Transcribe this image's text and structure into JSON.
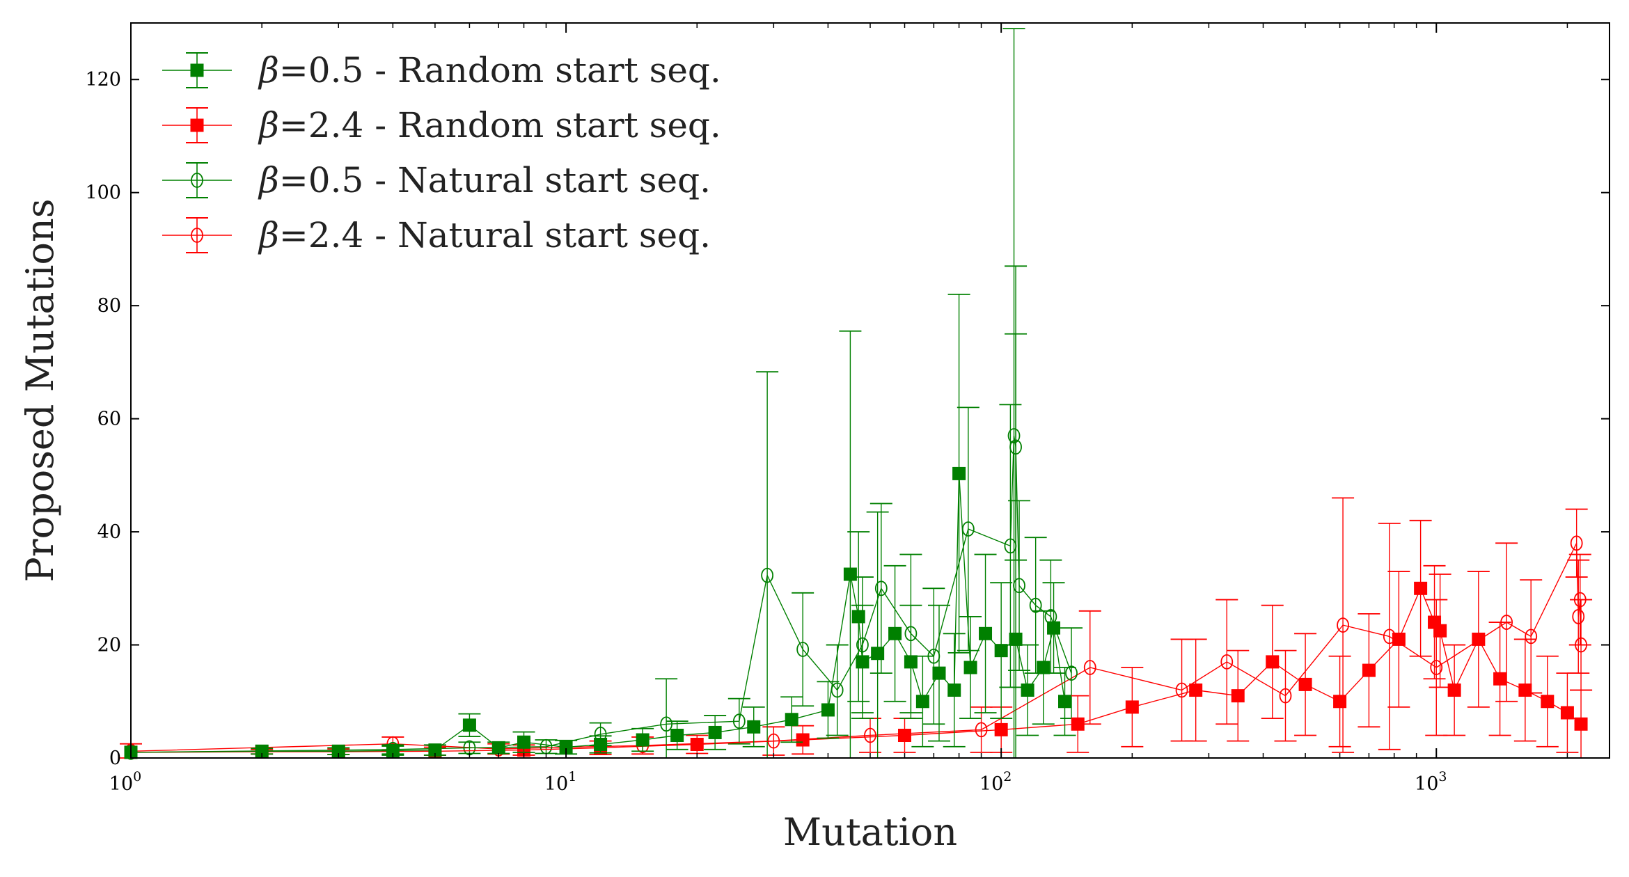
{
  "chart_data": {
    "type": "scatter",
    "title": "",
    "xlabel": "Mutation",
    "ylabel": "Proposed Mutations",
    "xscale": "log",
    "xlim": [
      1,
      2500
    ],
    "ylim": [
      0,
      130
    ],
    "grid": false,
    "legend_position": "top-left",
    "x_ticks": [
      {
        "value": 1,
        "base": "10",
        "exp": "0"
      },
      {
        "value": 10,
        "base": "10",
        "exp": "1"
      },
      {
        "value": 100,
        "base": "10",
        "exp": "2"
      },
      {
        "value": 1000,
        "base": "10",
        "exp": "3"
      }
    ],
    "y_ticks": [
      0,
      20,
      40,
      60,
      80,
      100,
      120
    ],
    "series": [
      {
        "name": "β=0.5 - Random start seq.",
        "name_beta": "β",
        "name_rest": "=0.5 - Random start seq.",
        "color": "#008000",
        "marker": "square",
        "points": [
          {
            "x": 1,
            "y": 1,
            "err": 0
          },
          {
            "x": 2,
            "y": 1.2,
            "err": 0.5
          },
          {
            "x": 3,
            "y": 1.2,
            "err": 0.6
          },
          {
            "x": 4,
            "y": 1.3,
            "err": 0.8
          },
          {
            "x": 5,
            "y": 1.4,
            "err": 0.9
          },
          {
            "x": 6,
            "y": 5.8,
            "err": 2
          },
          {
            "x": 7,
            "y": 1.8,
            "err": 1
          },
          {
            "x": 8,
            "y": 2.8,
            "err": 1.8
          },
          {
            "x": 10,
            "y": 1.9,
            "err": 1.2
          },
          {
            "x": 12,
            "y": 2.4,
            "err": 1.5
          },
          {
            "x": 15,
            "y": 3.2,
            "err": 2
          },
          {
            "x": 18,
            "y": 4,
            "err": 2.5
          },
          {
            "x": 22,
            "y": 4.5,
            "err": 3
          },
          {
            "x": 27,
            "y": 5.5,
            "err": 3.5
          },
          {
            "x": 33,
            "y": 6.8,
            "err": 4
          },
          {
            "x": 40,
            "y": 8.5,
            "err": 5
          },
          {
            "x": 45,
            "y": 32.5,
            "err": 43
          },
          {
            "x": 47,
            "y": 25,
            "err": 15
          },
          {
            "x": 48,
            "y": 17,
            "err": 10
          },
          {
            "x": 52,
            "y": 18.5,
            "err": 25
          },
          {
            "x": 57,
            "y": 22,
            "err": 12
          },
          {
            "x": 62,
            "y": 17,
            "err": 10
          },
          {
            "x": 66,
            "y": 10,
            "err": 8
          },
          {
            "x": 72,
            "y": 15,
            "err": 12
          },
          {
            "x": 78,
            "y": 12,
            "err": 10
          },
          {
            "x": 80,
            "y": 50.3,
            "err": 31.7
          },
          {
            "x": 85,
            "y": 16,
            "err": 9
          },
          {
            "x": 92,
            "y": 22,
            "err": 14
          },
          {
            "x": 100,
            "y": 19,
            "err": 12
          },
          {
            "x": 108,
            "y": 21,
            "err": 66
          },
          {
            "x": 115,
            "y": 12,
            "err": 8
          },
          {
            "x": 125,
            "y": 16,
            "err": 10
          },
          {
            "x": 132,
            "y": 23,
            "err": 8
          },
          {
            "x": 140,
            "y": 10,
            "err": 6
          }
        ]
      },
      {
        "name": "β=2.4 - Random start seq.",
        "name_beta": "β",
        "name_rest": "=2.4 - Random start seq.",
        "color": "#ff0000",
        "marker": "square",
        "points": [
          {
            "x": 1,
            "y": 1,
            "err": 0
          },
          {
            "x": 2,
            "y": 1.1,
            "err": 0.4
          },
          {
            "x": 3,
            "y": 1.1,
            "err": 0.5
          },
          {
            "x": 5,
            "y": 1.2,
            "err": 0.7
          },
          {
            "x": 8,
            "y": 1.4,
            "err": 0.9
          },
          {
            "x": 12,
            "y": 1.8,
            "err": 1.2
          },
          {
            "x": 20,
            "y": 2.4,
            "err": 1.6
          },
          {
            "x": 35,
            "y": 3.2,
            "err": 2.5
          },
          {
            "x": 60,
            "y": 4,
            "err": 3
          },
          {
            "x": 100,
            "y": 5,
            "err": 4
          },
          {
            "x": 150,
            "y": 6,
            "err": 5
          },
          {
            "x": 200,
            "y": 9,
            "err": 7
          },
          {
            "x": 280,
            "y": 12,
            "err": 9
          },
          {
            "x": 350,
            "y": 11,
            "err": 8
          },
          {
            "x": 420,
            "y": 17,
            "err": 10
          },
          {
            "x": 500,
            "y": 13,
            "err": 9
          },
          {
            "x": 600,
            "y": 10,
            "err": 8
          },
          {
            "x": 700,
            "y": 15.5,
            "err": 10
          },
          {
            "x": 820,
            "y": 21,
            "err": 12
          },
          {
            "x": 920,
            "y": 30,
            "err": 12
          },
          {
            "x": 990,
            "y": 24,
            "err": 10
          },
          {
            "x": 1020,
            "y": 22.5,
            "err": 10
          },
          {
            "x": 1100,
            "y": 12,
            "err": 8
          },
          {
            "x": 1250,
            "y": 21,
            "err": 12
          },
          {
            "x": 1400,
            "y": 14,
            "err": 10
          },
          {
            "x": 1600,
            "y": 12,
            "err": 9
          },
          {
            "x": 1800,
            "y": 10,
            "err": 8
          },
          {
            "x": 2000,
            "y": 8,
            "err": 7
          },
          {
            "x": 2150,
            "y": 6,
            "err": 6
          }
        ]
      },
      {
        "name": "β=0.5 - Natural start seq.",
        "name_beta": "β",
        "name_rest": "=0.5 - Natural start seq.",
        "color": "#008000",
        "marker": "circle",
        "points": [
          {
            "x": 1,
            "y": 1,
            "err": 0
          },
          {
            "x": 4,
            "y": 1.5,
            "err": 0.8
          },
          {
            "x": 6,
            "y": 1.8,
            "err": 1
          },
          {
            "x": 9,
            "y": 2,
            "err": 1.2
          },
          {
            "x": 12,
            "y": 4.2,
            "err": 2
          },
          {
            "x": 17,
            "y": 6,
            "err": 8
          },
          {
            "x": 25,
            "y": 6.5,
            "err": 4
          },
          {
            "x": 29,
            "y": 32.3,
            "err": 36
          },
          {
            "x": 35,
            "y": 19.2,
            "err": 10
          },
          {
            "x": 42,
            "y": 12,
            "err": 8
          },
          {
            "x": 48,
            "y": 20,
            "err": 12
          },
          {
            "x": 53,
            "y": 30,
            "err": 15
          },
          {
            "x": 62,
            "y": 22,
            "err": 14
          },
          {
            "x": 70,
            "y": 18,
            "err": 12
          },
          {
            "x": 84,
            "y": 40.5,
            "err": 21.5
          },
          {
            "x": 105,
            "y": 37.5,
            "err": 25
          },
          {
            "x": 107,
            "y": 57,
            "err": 72
          },
          {
            "x": 108,
            "y": 55,
            "err": 20
          },
          {
            "x": 110,
            "y": 30.5,
            "err": 15
          },
          {
            "x": 120,
            "y": 27,
            "err": 12
          },
          {
            "x": 130,
            "y": 25,
            "err": 10
          },
          {
            "x": 145,
            "y": 15,
            "err": 8
          }
        ]
      },
      {
        "name": "β=2.4 - Natural start seq.",
        "name_beta": "β",
        "name_rest": "=2.4 - Natural start seq.",
        "color": "#ff0000",
        "marker": "circle",
        "points": [
          {
            "x": 1,
            "y": 1.2,
            "err": 1.3
          },
          {
            "x": 4,
            "y": 2.5,
            "err": 1.2
          },
          {
            "x": 7,
            "y": 1.6,
            "err": 0.9
          },
          {
            "x": 15,
            "y": 2.2,
            "err": 1.5
          },
          {
            "x": 30,
            "y": 3,
            "err": 2.5
          },
          {
            "x": 50,
            "y": 4,
            "err": 3
          },
          {
            "x": 90,
            "y": 5,
            "err": 4
          },
          {
            "x": 160,
            "y": 16,
            "err": 10
          },
          {
            "x": 260,
            "y": 12,
            "err": 9
          },
          {
            "x": 330,
            "y": 17,
            "err": 11
          },
          {
            "x": 450,
            "y": 11,
            "err": 8
          },
          {
            "x": 610,
            "y": 23.5,
            "err": 22.5
          },
          {
            "x": 780,
            "y": 21.5,
            "err": 20
          },
          {
            "x": 1000,
            "y": 16,
            "err": 12
          },
          {
            "x": 1450,
            "y": 24,
            "err": 14
          },
          {
            "x": 1650,
            "y": 21.5,
            "err": 10
          },
          {
            "x": 2100,
            "y": 38,
            "err": 6
          },
          {
            "x": 2120,
            "y": 25,
            "err": 10
          },
          {
            "x": 2140,
            "y": 28,
            "err": 8
          },
          {
            "x": 2150,
            "y": 20,
            "err": 8
          }
        ]
      }
    ]
  }
}
